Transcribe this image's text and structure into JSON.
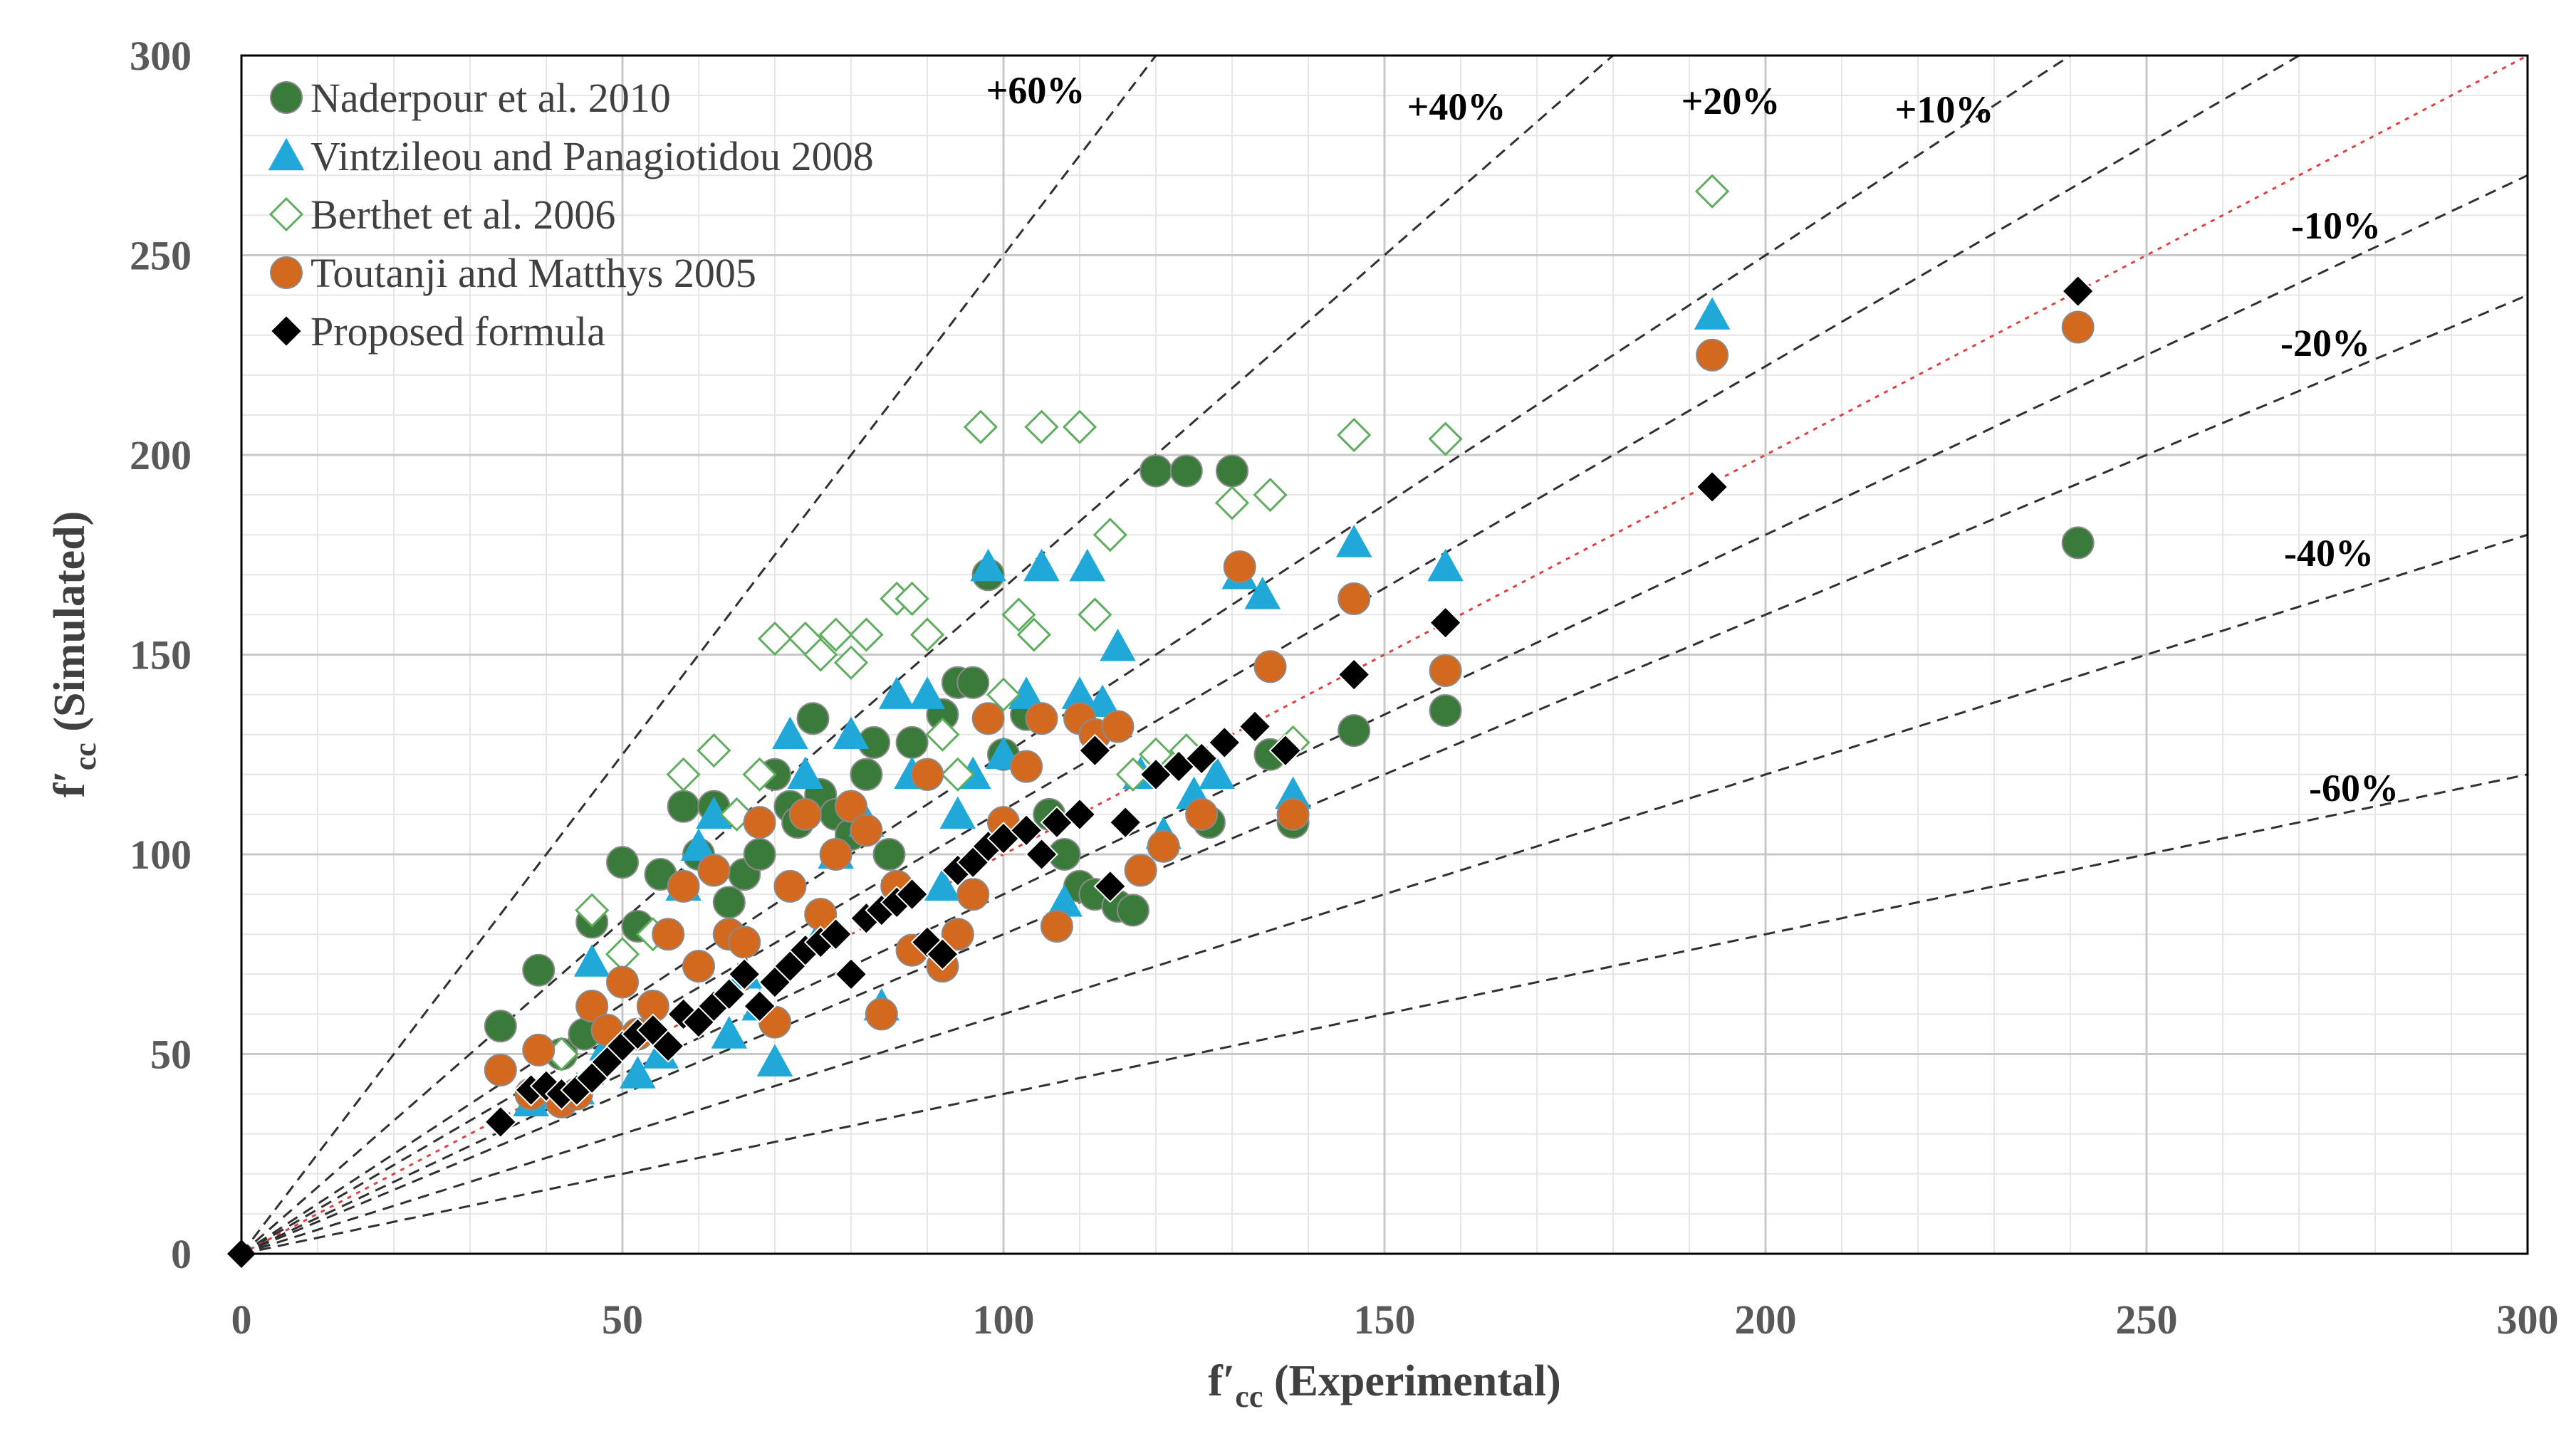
{
  "chart_data": {
    "type": "scatter",
    "title": "",
    "xlabel_prefix": "f′",
    "xlabel_sub": "cc",
    "xlabel_rest": " (Experimental)",
    "ylabel_prefix": "f′",
    "ylabel_sub": "cc",
    "ylabel_rest": " (Simulated)",
    "xlim": [
      0,
      300
    ],
    "ylim": [
      0,
      300
    ],
    "xticks": [
      "0",
      "50",
      "100",
      "150",
      "200",
      "250",
      "300"
    ],
    "yticks": [
      "0",
      "50",
      "100",
      "150",
      "200",
      "250",
      "300"
    ],
    "grid": true,
    "legend_position": "top-left",
    "reference_lines": [
      {
        "label": "+60%",
        "slope": 2.5
      },
      {
        "label": "+40%",
        "slope": 1.667
      },
      {
        "label": "+20%",
        "slope": 1.25
      },
      {
        "label": "+10%",
        "slope": 1.111
      },
      {
        "label": "",
        "slope": 1.0
      },
      {
        "label": "-10%",
        "slope": 0.9
      },
      {
        "label": "-20%",
        "slope": 0.8
      },
      {
        "label": "-40%",
        "slope": 0.6
      },
      {
        "label": "-60%",
        "slope": 0.4
      }
    ],
    "series": [
      {
        "name": "Naderpour et al. 2010",
        "marker": "circle",
        "color": "#3a7a3a",
        "points": [
          [
            34,
            57
          ],
          [
            39,
            71
          ],
          [
            42,
            50
          ],
          [
            45,
            55
          ],
          [
            46,
            83
          ],
          [
            50,
            98
          ],
          [
            52,
            82
          ],
          [
            55,
            95
          ],
          [
            58,
            112
          ],
          [
            60,
            100
          ],
          [
            62,
            112
          ],
          [
            64,
            88
          ],
          [
            66,
            95
          ],
          [
            68,
            100
          ],
          [
            70,
            120
          ],
          [
            72,
            112
          ],
          [
            73,
            108
          ],
          [
            75,
            134
          ],
          [
            76,
            115
          ],
          [
            78,
            110
          ],
          [
            80,
            105
          ],
          [
            82,
            120
          ],
          [
            83,
            128
          ],
          [
            85,
            100
          ],
          [
            88,
            128
          ],
          [
            90,
            120
          ],
          [
            92,
            135
          ],
          [
            94,
            143
          ],
          [
            96,
            143
          ],
          [
            98,
            170
          ],
          [
            100,
            125
          ],
          [
            103,
            135
          ],
          [
            106,
            110
          ],
          [
            108,
            100
          ],
          [
            110,
            92
          ],
          [
            112,
            90
          ],
          [
            115,
            87
          ],
          [
            117,
            86
          ],
          [
            120,
            196
          ],
          [
            124,
            196
          ],
          [
            130,
            196
          ],
          [
            127,
            108
          ],
          [
            135,
            125
          ],
          [
            138,
            108
          ],
          [
            146,
            131
          ],
          [
            158,
            136
          ],
          [
            241,
            178
          ]
        ]
      },
      {
        "name": "Vintzileou and Panagiotidou 2008",
        "marker": "triangle",
        "color": "#1fa8d8",
        "points": [
          [
            38,
            38
          ],
          [
            40,
            40
          ],
          [
            44,
            41
          ],
          [
            46,
            73
          ],
          [
            48,
            52
          ],
          [
            52,
            45
          ],
          [
            55,
            50
          ],
          [
            58,
            92
          ],
          [
            60,
            102
          ],
          [
            62,
            110
          ],
          [
            64,
            55
          ],
          [
            66,
            70
          ],
          [
            68,
            62
          ],
          [
            70,
            48
          ],
          [
            72,
            130
          ],
          [
            74,
            120
          ],
          [
            76,
            80
          ],
          [
            78,
            100
          ],
          [
            80,
            130
          ],
          [
            82,
            108
          ],
          [
            84,
            62
          ],
          [
            86,
            140
          ],
          [
            88,
            120
          ],
          [
            90,
            140
          ],
          [
            92,
            92
          ],
          [
            94,
            110
          ],
          [
            96,
            120
          ],
          [
            98,
            172
          ],
          [
            100,
            125
          ],
          [
            103,
            140
          ],
          [
            105,
            172
          ],
          [
            108,
            88
          ],
          [
            110,
            140
          ],
          [
            111,
            172
          ],
          [
            113,
            138
          ],
          [
            115,
            152
          ],
          [
            118,
            120
          ],
          [
            121,
            105
          ],
          [
            125,
            115
          ],
          [
            128,
            120
          ],
          [
            131,
            170
          ],
          [
            134,
            165
          ],
          [
            138,
            115
          ],
          [
            146,
            178
          ],
          [
            158,
            172
          ],
          [
            193,
            235
          ]
        ]
      },
      {
        "name": "Berthet et al. 2006",
        "marker": "diamond-open",
        "color": "#5fad5f",
        "points": [
          [
            42,
            50
          ],
          [
            46,
            86
          ],
          [
            50,
            75
          ],
          [
            54,
            80
          ],
          [
            58,
            120
          ],
          [
            62,
            126
          ],
          [
            65,
            110
          ],
          [
            68,
            120
          ],
          [
            70,
            154
          ],
          [
            74,
            154
          ],
          [
            76,
            150
          ],
          [
            78,
            155
          ],
          [
            80,
            148
          ],
          [
            82,
            155
          ],
          [
            86,
            164
          ],
          [
            88,
            164
          ],
          [
            90,
            155
          ],
          [
            92,
            130
          ],
          [
            94,
            120
          ],
          [
            97,
            207
          ],
          [
            100,
            140
          ],
          [
            102,
            160
          ],
          [
            104,
            155
          ],
          [
            105,
            207
          ],
          [
            110,
            207
          ],
          [
            112,
            160
          ],
          [
            114,
            180
          ],
          [
            117,
            120
          ],
          [
            120,
            125
          ],
          [
            124,
            126
          ],
          [
            130,
            188
          ],
          [
            135,
            190
          ],
          [
            138,
            128
          ],
          [
            146,
            205
          ],
          [
            158,
            204
          ],
          [
            193,
            266
          ]
        ]
      },
      {
        "name": "Toutanji and Matthys 2005",
        "marker": "circle",
        "color": "#d2691e",
        "points": [
          [
            34,
            46
          ],
          [
            38,
            40
          ],
          [
            39,
            51
          ],
          [
            42,
            38
          ],
          [
            44,
            40
          ],
          [
            46,
            62
          ],
          [
            48,
            56
          ],
          [
            50,
            68
          ],
          [
            52,
            55
          ],
          [
            54,
            62
          ],
          [
            56,
            80
          ],
          [
            58,
            92
          ],
          [
            60,
            72
          ],
          [
            62,
            96
          ],
          [
            64,
            80
          ],
          [
            66,
            78
          ],
          [
            68,
            108
          ],
          [
            70,
            58
          ],
          [
            72,
            92
          ],
          [
            74,
            110
          ],
          [
            76,
            85
          ],
          [
            78,
            100
          ],
          [
            80,
            112
          ],
          [
            82,
            106
          ],
          [
            84,
            60
          ],
          [
            86,
            92
          ],
          [
            88,
            76
          ],
          [
            90,
            120
          ],
          [
            92,
            72
          ],
          [
            94,
            80
          ],
          [
            96,
            90
          ],
          [
            98,
            134
          ],
          [
            100,
            108
          ],
          [
            103,
            122
          ],
          [
            105,
            134
          ],
          [
            107,
            82
          ],
          [
            110,
            134
          ],
          [
            112,
            130
          ],
          [
            115,
            132
          ],
          [
            118,
            96
          ],
          [
            121,
            102
          ],
          [
            126,
            110
          ],
          [
            131,
            172
          ],
          [
            135,
            147
          ],
          [
            138,
            110
          ],
          [
            146,
            164
          ],
          [
            158,
            146
          ],
          [
            193,
            225
          ],
          [
            241,
            232
          ]
        ]
      },
      {
        "name": "Proposed formula",
        "marker": "diamond",
        "color": "#000000",
        "points": [
          [
            34,
            33
          ],
          [
            38,
            41
          ],
          [
            40,
            42
          ],
          [
            42,
            40
          ],
          [
            44,
            41
          ],
          [
            46,
            44
          ],
          [
            48,
            48
          ],
          [
            50,
            52
          ],
          [
            52,
            55
          ],
          [
            54,
            56
          ],
          [
            56,
            52
          ],
          [
            58,
            60
          ],
          [
            60,
            58
          ],
          [
            62,
            62
          ],
          [
            64,
            65
          ],
          [
            66,
            70
          ],
          [
            68,
            62
          ],
          [
            70,
            68
          ],
          [
            72,
            72
          ],
          [
            74,
            76
          ],
          [
            76,
            78
          ],
          [
            78,
            80
          ],
          [
            80,
            70
          ],
          [
            82,
            84
          ],
          [
            84,
            86
          ],
          [
            86,
            88
          ],
          [
            88,
            90
          ],
          [
            90,
            78
          ],
          [
            92,
            75
          ],
          [
            94,
            96
          ],
          [
            96,
            98
          ],
          [
            98,
            102
          ],
          [
            100,
            104
          ],
          [
            103,
            106
          ],
          [
            105,
            100
          ],
          [
            107,
            108
          ],
          [
            110,
            110
          ],
          [
            112,
            126
          ],
          [
            114,
            92
          ],
          [
            116,
            108
          ],
          [
            120,
            120
          ],
          [
            123,
            122
          ],
          [
            126,
            124
          ],
          [
            129,
            128
          ],
          [
            133,
            132
          ],
          [
            137,
            126
          ],
          [
            146,
            145
          ],
          [
            158,
            158
          ],
          [
            193,
            192
          ],
          [
            241,
            241
          ]
        ]
      }
    ]
  }
}
